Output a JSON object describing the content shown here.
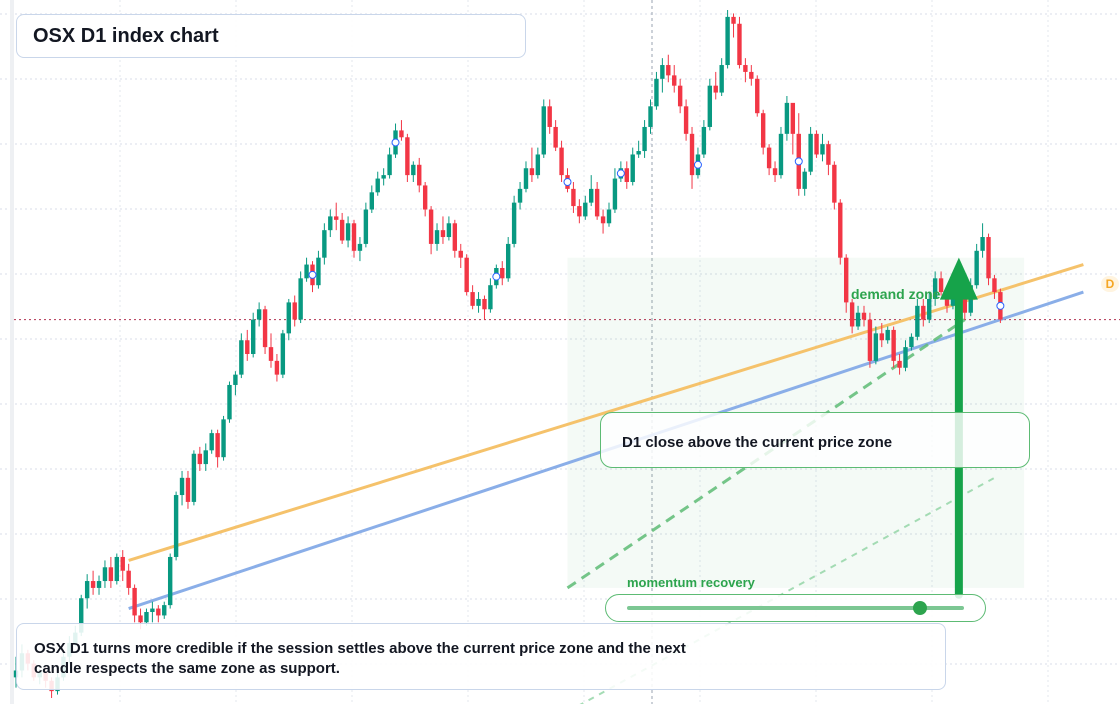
{
  "title": "OSX D1 index chart",
  "note": "OSX D1 turns more credible if the session settles above the current price zone and the next candle respects the same zone as support.",
  "callout": "D1 close above the current price zone",
  "zone_label": "demand zone",
  "momentum": {
    "label": "momentum recovery",
    "level": 0.87
  },
  "end_badge": "D",
  "colors": {
    "up": "#089981",
    "down": "#f23645",
    "trend_upper": "#f5c26b",
    "trend_lower": "#8aaee8",
    "accent_green": "#16a34a",
    "price_line": "#b03050"
  },
  "chart_data": {
    "type": "candlestick",
    "timeframe": "D1",
    "symbol": "OSX",
    "ylim": [
      0,
      100
    ],
    "current_price": 55,
    "grid": true,
    "legend": "none",
    "candles": [
      [
        3.0,
        4.0,
        6.0,
        1.5
      ],
      [
        4.0,
        6.5,
        7.8,
        3.0
      ],
      [
        6.5,
        5.0,
        7.0,
        4.0
      ],
      [
        5.0,
        3.0,
        5.5,
        2.5
      ],
      [
        3.0,
        3.8,
        4.2,
        2.0
      ],
      [
        3.8,
        2.5,
        4.5,
        1.5
      ],
      [
        2.5,
        1.0,
        3.0,
        0.0
      ],
      [
        1.0,
        3.0,
        4.0,
        0.5
      ],
      [
        3.0,
        6.0,
        7.0,
        2.5
      ],
      [
        6.0,
        8.0,
        9.0,
        5.0
      ],
      [
        8.0,
        9.5,
        10.5,
        7.5
      ],
      [
        9.5,
        14.5,
        15.0,
        9.0
      ],
      [
        14.5,
        17.0,
        18.0,
        13.0
      ],
      [
        17.0,
        16.0,
        18.5,
        15.0
      ],
      [
        16.0,
        17.0,
        17.8,
        15.0
      ],
      [
        17.0,
        19.0,
        20.0,
        16.0
      ],
      [
        19.0,
        17.0,
        20.5,
        16.0
      ],
      [
        17.0,
        20.5,
        21.0,
        16.5
      ],
      [
        20.5,
        18.5,
        21.5,
        17.0
      ],
      [
        18.5,
        16.0,
        19.5,
        15.0
      ],
      [
        16.0,
        12.0,
        16.5,
        11.0
      ],
      [
        12.0,
        11.0,
        13.0,
        10.0
      ],
      [
        11.0,
        12.5,
        13.0,
        10.5
      ],
      [
        12.5,
        13.0,
        14.0,
        11.0
      ],
      [
        13.0,
        12.0,
        13.5,
        11.0
      ],
      [
        12.0,
        13.5,
        14.0,
        11.5
      ],
      [
        13.5,
        20.5,
        21.0,
        13.0
      ],
      [
        20.5,
        29.5,
        30.0,
        20.0
      ],
      [
        29.5,
        32.0,
        33.0,
        28.0
      ],
      [
        32.0,
        28.5,
        33.0,
        27.5
      ],
      [
        28.5,
        35.5,
        36.0,
        28.0
      ],
      [
        35.5,
        34.0,
        36.5,
        33.0
      ],
      [
        34.0,
        36.0,
        37.0,
        33.0
      ],
      [
        36.0,
        38.5,
        39.0,
        35.5
      ],
      [
        38.5,
        35.0,
        39.0,
        33.5
      ],
      [
        35.0,
        40.5,
        41.0,
        34.5
      ],
      [
        40.5,
        45.5,
        46.0,
        40.0
      ],
      [
        45.5,
        47.0,
        47.5,
        44.0
      ],
      [
        47.0,
        52.0,
        53.0,
        46.5
      ],
      [
        52.0,
        50.0,
        53.5,
        49.0
      ],
      [
        50.0,
        55.0,
        56.0,
        49.5
      ],
      [
        55.0,
        56.5,
        57.5,
        54.0
      ],
      [
        56.5,
        51.0,
        57.0,
        50.0
      ],
      [
        51.0,
        49.0,
        53.0,
        48.0
      ],
      [
        49.0,
        47.0,
        50.0,
        46.0
      ],
      [
        47.0,
        53.0,
        53.5,
        46.5
      ],
      [
        53.0,
        57.5,
        58.0,
        52.0
      ],
      [
        57.5,
        55.0,
        58.5,
        54.0
      ],
      [
        55.0,
        61.0,
        62.0,
        54.5
      ],
      [
        61.0,
        63.0,
        64.0,
        60.5
      ],
      [
        63.0,
        60.0,
        63.5,
        59.0
      ],
      [
        60.0,
        64.0,
        65.0,
        59.5
      ],
      [
        64.0,
        68.0,
        69.0,
        63.0
      ],
      [
        68.0,
        70.0,
        71.0,
        67.0
      ],
      [
        70.0,
        69.5,
        72.0,
        68.0
      ],
      [
        69.5,
        66.5,
        70.5,
        66.0
      ],
      [
        66.5,
        69.0,
        70.0,
        65.5
      ],
      [
        69.0,
        65.0,
        69.5,
        64.0
      ],
      [
        65.0,
        66.0,
        67.0,
        63.5
      ],
      [
        66.0,
        71.0,
        72.0,
        65.5
      ],
      [
        71.0,
        73.5,
        74.5,
        70.5
      ],
      [
        73.5,
        75.5,
        76.5,
        73.0
      ],
      [
        75.5,
        76.0,
        77.0,
        74.5
      ],
      [
        76.0,
        79.0,
        80.0,
        75.5
      ],
      [
        79.0,
        82.5,
        83.5,
        78.5
      ],
      [
        82.5,
        81.5,
        84.0,
        81.0
      ],
      [
        81.5,
        76.0,
        82.0,
        75.0
      ],
      [
        76.0,
        77.5,
        78.0,
        75.0
      ],
      [
        77.5,
        74.5,
        78.5,
        73.5
      ],
      [
        74.5,
        71.0,
        75.0,
        70.0
      ],
      [
        71.0,
        66.0,
        71.5,
        64.5
      ],
      [
        66.0,
        68.0,
        69.0,
        65.0
      ],
      [
        68.0,
        67.0,
        70.0,
        66.0
      ],
      [
        67.0,
        69.0,
        70.0,
        66.5
      ],
      [
        69.0,
        65.0,
        69.5,
        64.0
      ],
      [
        65.0,
        64.0,
        66.0,
        62.5
      ],
      [
        64.0,
        59.0,
        64.5,
        58.5
      ],
      [
        59.0,
        57.0,
        60.0,
        56.5
      ],
      [
        57.0,
        58.0,
        59.0,
        56.0
      ],
      [
        58.0,
        56.5,
        58.5,
        55.0
      ],
      [
        56.5,
        60.0,
        61.0,
        56.0
      ],
      [
        60.0,
        62.5,
        63.0,
        59.5
      ],
      [
        62.5,
        61.0,
        63.5,
        60.0
      ],
      [
        61.0,
        66.0,
        67.0,
        60.5
      ],
      [
        66.0,
        72.0,
        73.0,
        65.5
      ],
      [
        72.0,
        74.0,
        75.0,
        71.0
      ],
      [
        74.0,
        77.0,
        78.0,
        73.5
      ],
      [
        77.0,
        76.0,
        80.0,
        75.0
      ],
      [
        76.0,
        79.0,
        80.0,
        75.5
      ],
      [
        79.0,
        86.0,
        87.0,
        78.5
      ],
      [
        86.0,
        83.0,
        87.0,
        82.0
      ],
      [
        83.0,
        80.0,
        84.0,
        79.5
      ],
      [
        80.0,
        76.0,
        81.0,
        75.0
      ],
      [
        76.0,
        74.0,
        77.0,
        73.5
      ],
      [
        74.0,
        71.5,
        75.0,
        70.5
      ],
      [
        71.5,
        70.0,
        72.5,
        69.0
      ],
      [
        70.0,
        72.0,
        73.0,
        69.5
      ],
      [
        72.0,
        74.0,
        76.0,
        71.5
      ],
      [
        74.0,
        70.0,
        75.0,
        69.5
      ],
      [
        70.0,
        69.0,
        71.0,
        67.5
      ],
      [
        69.0,
        71.0,
        72.0,
        68.5
      ],
      [
        71.0,
        75.5,
        77.0,
        70.5
      ],
      [
        75.5,
        77.0,
        78.0,
        75.0
      ],
      [
        77.0,
        75.0,
        78.0,
        74.0
      ],
      [
        75.0,
        79.0,
        80.0,
        74.5
      ],
      [
        79.0,
        79.5,
        81.0,
        78.5
      ],
      [
        79.5,
        83.0,
        84.0,
        78.5
      ],
      [
        83.0,
        86.0,
        87.0,
        82.0
      ],
      [
        86.0,
        90.0,
        91.0,
        85.5
      ],
      [
        90.0,
        92.0,
        93.0,
        88.0
      ],
      [
        92.0,
        90.5,
        93.5,
        89.5
      ],
      [
        90.5,
        89.0,
        92.0,
        88.0
      ],
      [
        89.0,
        86.0,
        90.0,
        85.0
      ],
      [
        86.0,
        82.0,
        87.0,
        81.0
      ],
      [
        82.0,
        76.0,
        83.0,
        74.0
      ],
      [
        76.0,
        79.0,
        80.0,
        75.5
      ],
      [
        79.0,
        83.0,
        84.0,
        78.5
      ],
      [
        83.0,
        89.0,
        90.0,
        82.5
      ],
      [
        89.0,
        88.0,
        91.0,
        87.0
      ],
      [
        88.0,
        92.0,
        93.0,
        87.5
      ],
      [
        92.0,
        99.0,
        100.0,
        91.5
      ],
      [
        99.0,
        98.0,
        99.5,
        96.0
      ],
      [
        98.0,
        92.0,
        99.0,
        91.5
      ],
      [
        92.0,
        91.0,
        93.0,
        89.5
      ],
      [
        91.0,
        90.0,
        92.0,
        89.0
      ],
      [
        90.0,
        85.0,
        90.5,
        84.5
      ],
      [
        85.0,
        80.0,
        85.5,
        79.0
      ],
      [
        80.0,
        77.0,
        80.5,
        76.0
      ],
      [
        77.0,
        76.0,
        78.0,
        75.0
      ],
      [
        76.0,
        82.0,
        83.0,
        75.5
      ],
      [
        82.0,
        86.5,
        87.5,
        81.0
      ],
      [
        86.5,
        82.0,
        86.0,
        79.0
      ],
      [
        82.0,
        74.0,
        85.0,
        73.0
      ],
      [
        74.0,
        76.5,
        77.0,
        73.0
      ],
      [
        76.5,
        82.0,
        83.0,
        76.0
      ],
      [
        82.0,
        79.0,
        82.5,
        78.5
      ],
      [
        79.0,
        80.5,
        82.0,
        78.0
      ],
      [
        80.5,
        77.5,
        81.0,
        76.0
      ],
      [
        77.5,
        72.0,
        78.0,
        71.0
      ],
      [
        72.0,
        64.0,
        72.5,
        63.0
      ],
      [
        64.0,
        57.5,
        64.5,
        56.0
      ],
      [
        57.5,
        54.0,
        58.0,
        53.0
      ],
      [
        54.0,
        56.0,
        57.0,
        53.5
      ],
      [
        56.0,
        55.0,
        57.0,
        54.0
      ],
      [
        55.0,
        49.0,
        56.0,
        48.0
      ],
      [
        49.0,
        53.0,
        54.0,
        48.5
      ],
      [
        53.0,
        52.0,
        54.5,
        51.0
      ],
      [
        52.0,
        53.5,
        54.0,
        51.5
      ],
      [
        53.5,
        49.0,
        54.0,
        48.0
      ],
      [
        49.0,
        48.0,
        50.0,
        47.0
      ],
      [
        48.0,
        51.0,
        52.0,
        47.5
      ],
      [
        51.0,
        52.5,
        53.0,
        50.5
      ],
      [
        52.5,
        57.0,
        58.0,
        52.0
      ],
      [
        57.0,
        55.0,
        58.0,
        54.0
      ],
      [
        55.0,
        58.0,
        59.0,
        54.5
      ],
      [
        58.0,
        61.0,
        62.0,
        57.0
      ],
      [
        61.0,
        59.0,
        62.0,
        58.5
      ],
      [
        59.0,
        57.0,
        60.0,
        56.0
      ],
      [
        57.0,
        59.5,
        60.5,
        56.5
      ],
      [
        59.5,
        58.0,
        60.0,
        57.5
      ],
      [
        58.0,
        56.0,
        59.0,
        55.0
      ],
      [
        56.0,
        60.0,
        61.0,
        55.5
      ],
      [
        60.0,
        65.0,
        66.0,
        59.5
      ],
      [
        65.0,
        67.0,
        69.0,
        64.0
      ],
      [
        67.0,
        61.0,
        67.5,
        60.0
      ],
      [
        61.0,
        59.0,
        61.5,
        58.0
      ],
      [
        59.0,
        55.0,
        59.5,
        54.5
      ]
    ],
    "circle_markers": [
      50,
      64,
      81,
      93,
      102,
      115,
      132,
      166
    ],
    "trendlines": [
      {
        "style": "solid",
        "start": [
          19,
          20
        ],
        "end": [
          180,
          63
        ]
      },
      {
        "style": "solid",
        "start": [
          19,
          13
        ],
        "end": [
          180,
          59
        ]
      },
      {
        "style": "dashed",
        "start": [
          93,
          16
        ],
        "end": [
          160,
          55
        ]
      },
      {
        "style": "dashed-faint",
        "start": [
          93,
          -2
        ],
        "end": [
          165,
          32
        ]
      }
    ],
    "zone": {
      "x_from": 93,
      "x_to": 170,
      "y_from": 16,
      "y_to": 64
    },
    "arrow": {
      "x": 159,
      "from": 15,
      "to": 64
    },
    "price_line": 55
  }
}
